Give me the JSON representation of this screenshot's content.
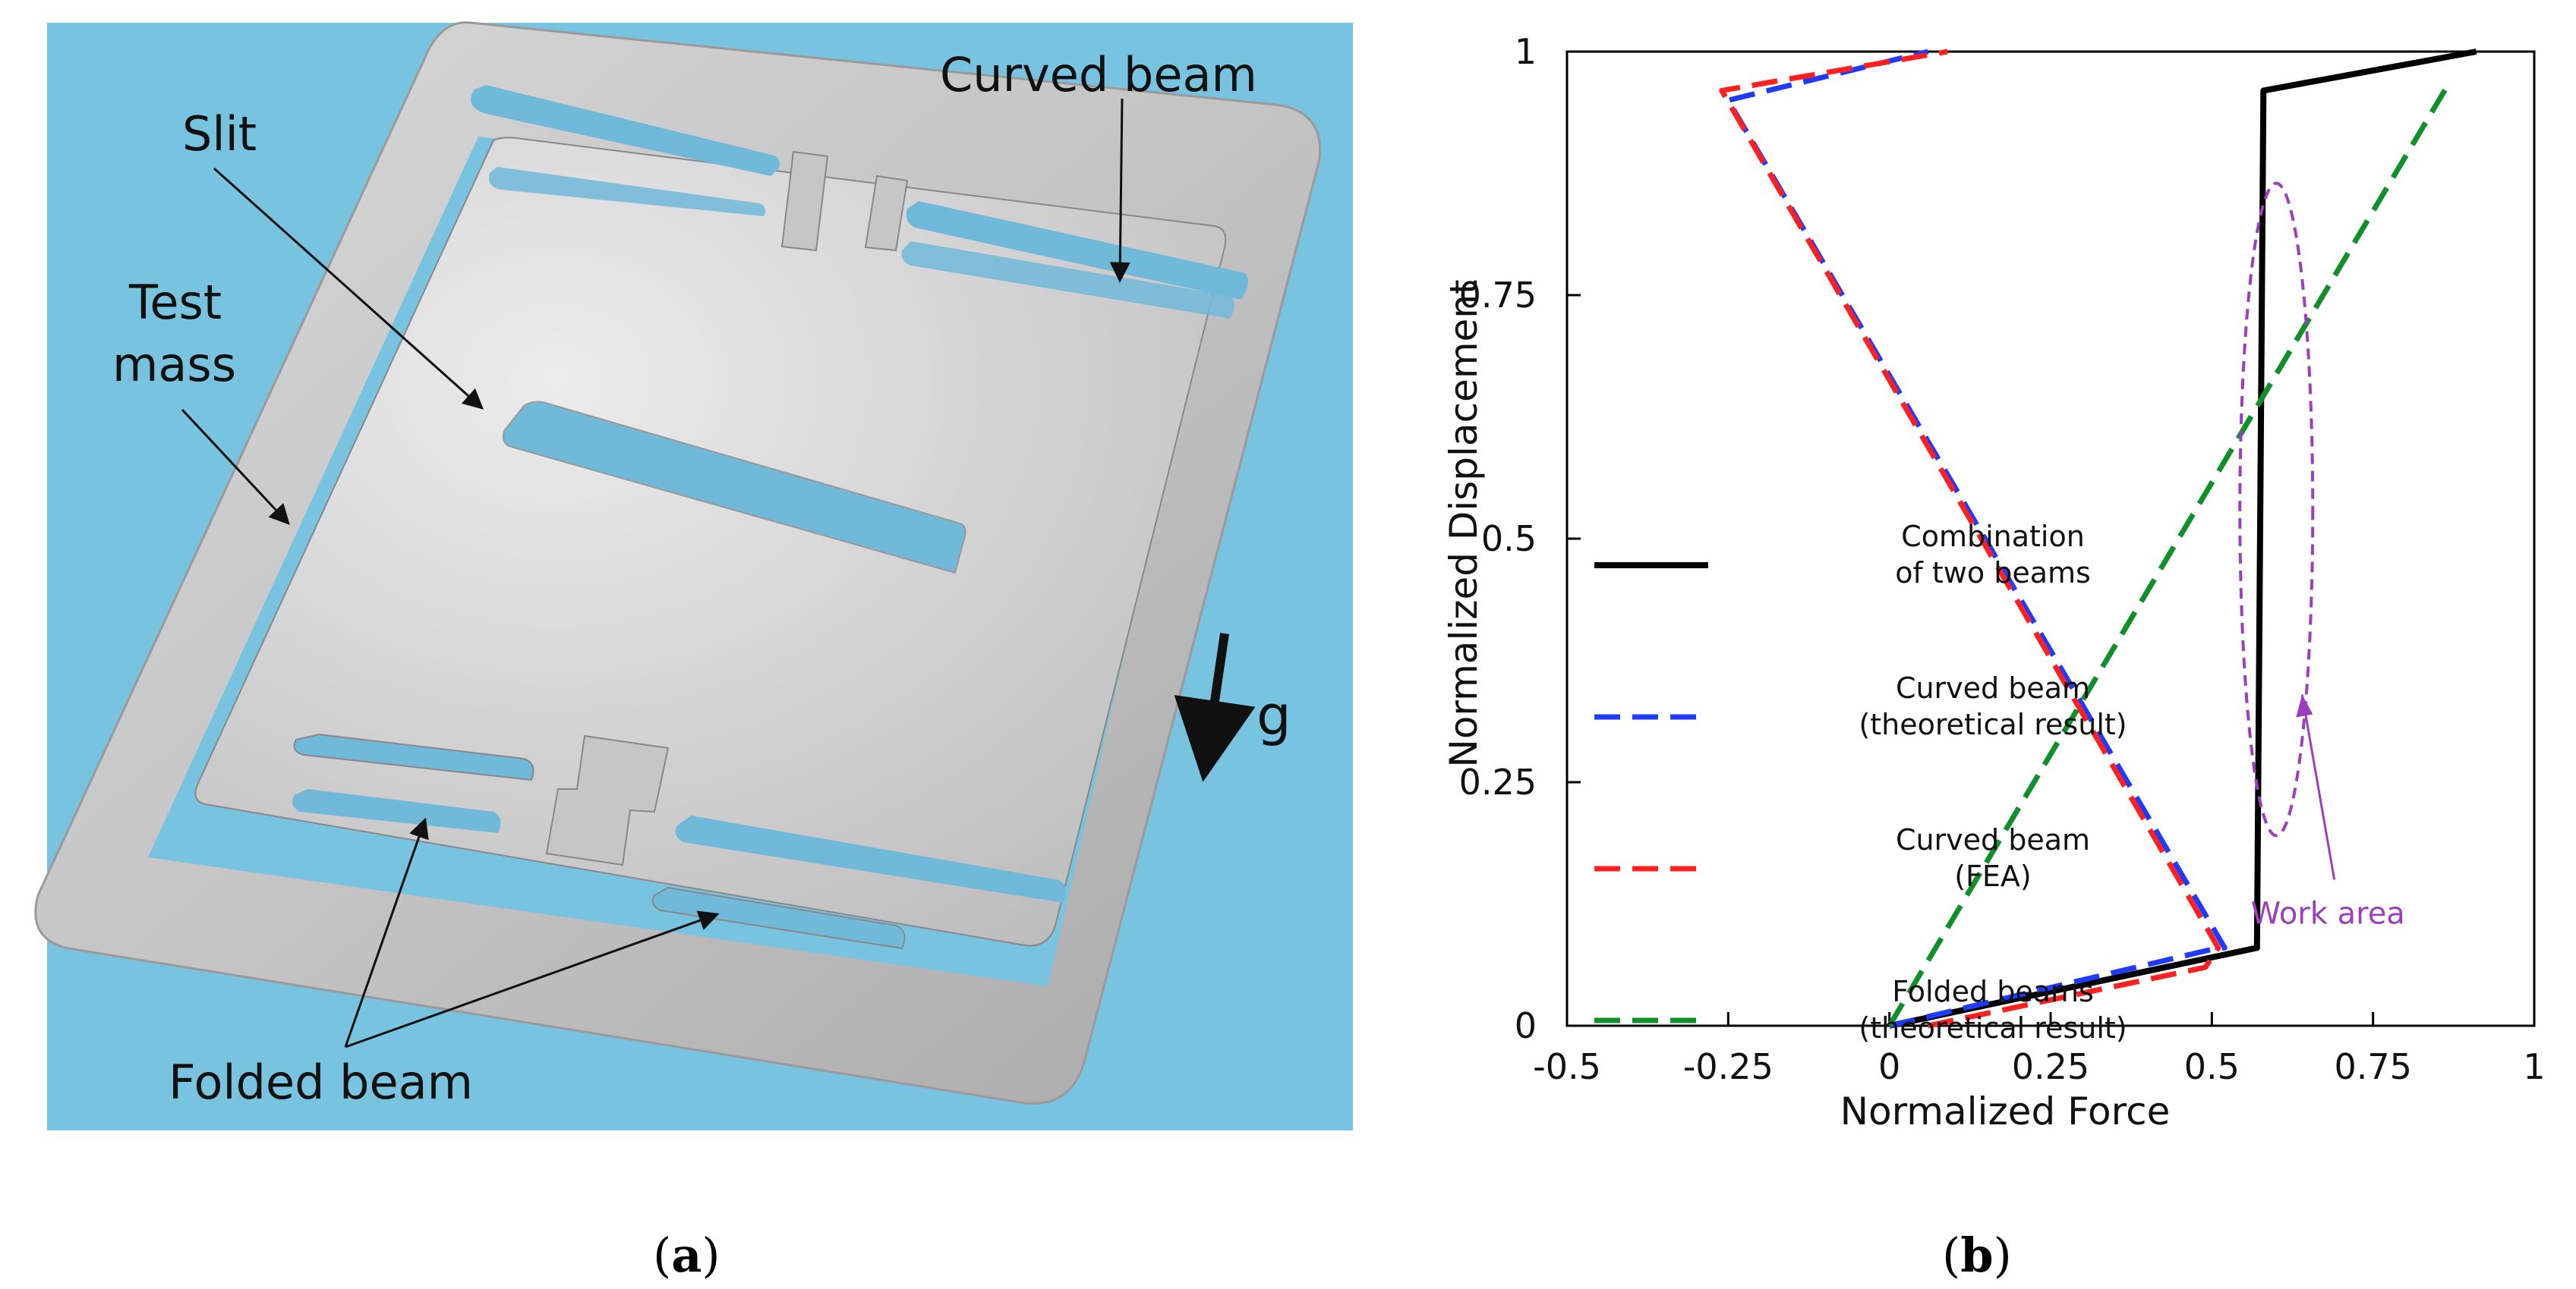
{
  "panel_a": {
    "labels": {
      "curved_beam": "Curved beam",
      "slit": "Slit",
      "test_mass_line1": "Test",
      "test_mass_line2": "mass",
      "folded_beam": "Folded beam",
      "gravity": "g"
    },
    "colors": {
      "background": "#78c3e0",
      "metal": "#c9c9c9",
      "slot": "#70b9d9"
    }
  },
  "panel_b": {
    "ylabel": "Normalized Displacement",
    "xlabel": "Normalized Force",
    "annotation": "Work area",
    "legend": [
      {
        "line1": "Combination",
        "line2": "of two beams"
      },
      {
        "line1": "Curved beam",
        "line2": "(theoretical result)"
      },
      {
        "line1": "Curved beam",
        "line2": "(FEA)"
      },
      {
        "line1": "Folded beams",
        "line2": "(theoretical result)"
      }
    ]
  },
  "captions": {
    "a_letter": "a",
    "b_letter": "b"
  },
  "chart_data": {
    "type": "line",
    "title": "",
    "xlabel": "Normalized Force",
    "ylabel": "Normalized Displacement",
    "xlim": [
      -0.5,
      1
    ],
    "ylim": [
      0,
      1
    ],
    "x_ticks": [
      "-0.5",
      "-0.25",
      "0",
      "0.25",
      "0.5",
      "0.75",
      "1"
    ],
    "y_ticks": [
      "0",
      "0.25",
      "0.5",
      "0.75",
      "1"
    ],
    "legend_position": "center-left",
    "series": [
      {
        "name": "Combination of two beams",
        "color": "#000000",
        "dash": "solid",
        "x": [
          0,
          0.57,
          0.58,
          0.91
        ],
        "y": [
          0,
          0.08,
          0.96,
          1.0
        ]
      },
      {
        "name": "Curved beam (theoretical result)",
        "color": "#1f3bff",
        "dash": "dashed",
        "x": [
          0,
          0.51,
          0.52,
          -0.25,
          0.06
        ],
        "y": [
          0,
          0.08,
          0.08,
          0.95,
          1.0
        ]
      },
      {
        "name": "Curved beam (FEA)",
        "color": "#ff2020",
        "dash": "dashed",
        "x": [
          0.06,
          0.49,
          0.51,
          -0.26,
          0.09
        ],
        "y": [
          0,
          0.06,
          0.08,
          0.96,
          1.0
        ]
      },
      {
        "name": "Folded beams (theoretical result)",
        "color": "#10902a",
        "dash": "dashed",
        "x": [
          0,
          0.87
        ],
        "y": [
          0,
          0.97
        ]
      }
    ],
    "annotation": {
      "text": "Work area",
      "center": [
        0.6,
        0.53
      ]
    }
  }
}
